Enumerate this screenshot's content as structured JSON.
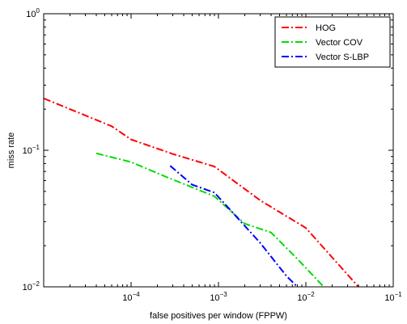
{
  "chart_data": {
    "type": "line",
    "xscale": "log",
    "yscale": "log",
    "xlim": [
      1e-05,
      0.1
    ],
    "ylim": [
      0.01,
      1
    ],
    "xlabel": "false positives per window (FPPW)",
    "ylabel": "miss rate",
    "x_tick_labels": [
      {
        "value": 0.0001,
        "base": "10",
        "exp": "−4"
      },
      {
        "value": 0.001,
        "base": "10",
        "exp": "−3"
      },
      {
        "value": 0.01,
        "base": "10",
        "exp": "−2"
      },
      {
        "value": 0.1,
        "base": "10",
        "exp": "−1"
      }
    ],
    "y_tick_labels": [
      {
        "value": 0.01,
        "base": "10",
        "exp": "−2"
      },
      {
        "value": 0.1,
        "base": "10",
        "exp": "−1"
      },
      {
        "value": 1,
        "base": "10",
        "exp": "0"
      }
    ],
    "grid": false,
    "legend_position": "top-right",
    "series": [
      {
        "name": "HOG",
        "color": "#ff0000",
        "dash": "dash-dot",
        "points": [
          [
            1e-05,
            0.24
          ],
          [
            6e-05,
            0.15
          ],
          [
            0.0001,
            0.12
          ],
          [
            0.0003,
            0.094
          ],
          [
            0.0009,
            0.076
          ],
          [
            0.003,
            0.043
          ],
          [
            0.01,
            0.027
          ],
          [
            0.04,
            0.01
          ]
        ]
      },
      {
        "name": "Vector COV",
        "color": "#00dd00",
        "dash": "dash-dot",
        "points": [
          [
            4e-05,
            0.095
          ],
          [
            0.0001,
            0.082
          ],
          [
            0.00025,
            0.064
          ],
          [
            0.0009,
            0.046
          ],
          [
            0.002,
            0.029
          ],
          [
            0.004,
            0.025
          ],
          [
            0.008,
            0.016
          ],
          [
            0.016,
            0.01
          ]
        ]
      },
      {
        "name": "Vector S-LBP",
        "color": "#0000ff",
        "dash": "dash-dot",
        "points": [
          [
            0.00028,
            0.077
          ],
          [
            0.0005,
            0.056
          ],
          [
            0.0009,
            0.049
          ],
          [
            0.003,
            0.021
          ],
          [
            0.006,
            0.012
          ],
          [
            0.008,
            0.01
          ]
        ]
      }
    ]
  }
}
